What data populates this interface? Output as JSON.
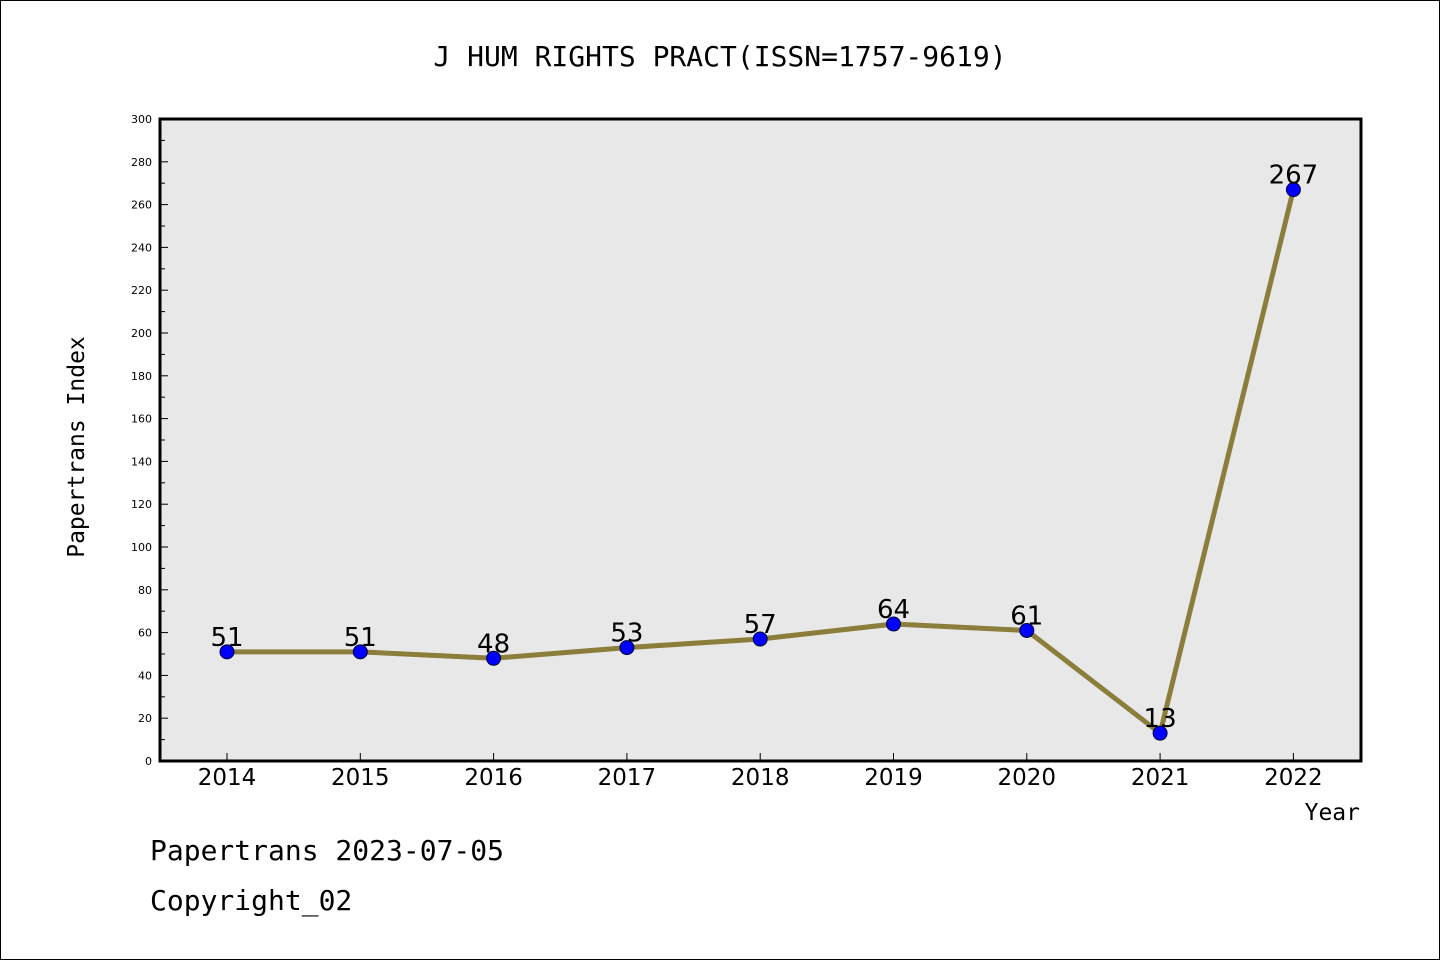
{
  "chart_data": {
    "type": "line",
    "title": "J HUM RIGHTS PRACT(ISSN=1757-9619)",
    "xlabel": "Year",
    "ylabel": "Papertrans Index",
    "categories": [
      "2014",
      "2015",
      "2016",
      "2017",
      "2018",
      "2019",
      "2020",
      "2021",
      "2022"
    ],
    "values": [
      51,
      51,
      48,
      53,
      57,
      64,
      61,
      13,
      267
    ],
    "data_labels": [
      "51",
      "51",
      "48",
      "53",
      "57",
      "64",
      "61",
      "13",
      "267"
    ],
    "ylim": [
      0,
      300
    ],
    "yticks": [
      0,
      20,
      40,
      60,
      80,
      100,
      120,
      140,
      160,
      180,
      200,
      220,
      240,
      260,
      280,
      300
    ],
    "grid": false,
    "colors": {
      "line": "#8b7d3a",
      "marker": "#0000ff",
      "plot_bg": "#e8e8e8"
    }
  },
  "footer": {
    "line1": "Papertrans 2023-07-05",
    "line2": "Copyright_02"
  }
}
